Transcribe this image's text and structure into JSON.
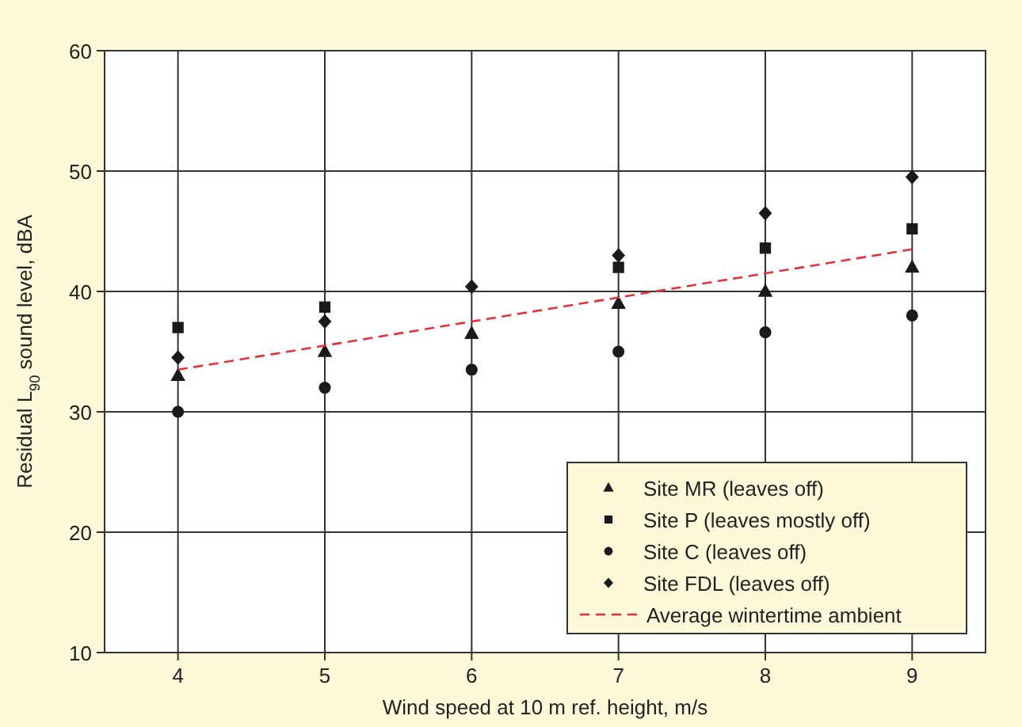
{
  "chart_data": {
    "type": "scatter",
    "xlabel": "Wind speed at 10 m ref. height, m/s",
    "ylabel": "Residual L$_{90}$ sound level, dBA",
    "x": [
      4,
      5,
      6,
      7,
      8,
      9
    ],
    "xlim": [
      3.5,
      9.5
    ],
    "xticks": [
      4,
      5,
      6,
      7,
      8,
      9
    ],
    "ylim": [
      10,
      60
    ],
    "yticks": [
      10,
      20,
      30,
      40,
      50,
      60
    ],
    "grid": true,
    "legend": "bottom right",
    "series": [
      {
        "name": "Site MR (leaves off)",
        "color": "#1a1a1a",
        "marker": "triangle",
        "values": [
          33,
          35,
          36.5,
          39,
          40,
          42
        ]
      },
      {
        "name": "Site P (leaves mostly off)",
        "color": "#1a1a1a",
        "marker": "square",
        "values": [
          37,
          38.7,
          null,
          42,
          43.6,
          45.2
        ]
      },
      {
        "name": "Site C (leaves off)",
        "color": "#1a1a1a",
        "marker": "circle",
        "values": [
          30,
          32,
          33.5,
          35,
          36.6,
          38
        ]
      },
      {
        "name": "Site FDL (leaves off)",
        "color": "#1a1a1a",
        "marker": "diamond",
        "values": [
          34.5,
          37.5,
          40.4,
          43,
          46.5,
          49.5
        ]
      },
      {
        "name": "Average wintertime ambient",
        "type": "line",
        "color": "#e8303a",
        "line_style": "dashed",
        "marker": "none",
        "x": [
          4,
          9
        ],
        "values": [
          33.5,
          43.5
        ]
      }
    ]
  }
}
